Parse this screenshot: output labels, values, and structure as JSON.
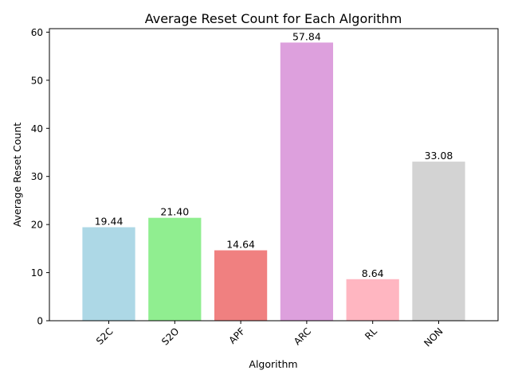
{
  "chart_data": {
    "type": "bar",
    "title": "Average Reset Count for Each Algorithm",
    "xlabel": "Algorithm",
    "ylabel": "Average Reset Count",
    "categories": [
      "S2C",
      "S2O",
      "APF",
      "ARC",
      "RL",
      "NON"
    ],
    "values": [
      19.44,
      21.4,
      14.64,
      57.84,
      8.64,
      33.08
    ],
    "value_labels": [
      "19.44",
      "21.40",
      "14.64",
      "57.84",
      "8.64",
      "33.08"
    ],
    "colors": [
      "#add8e6",
      "#90ee90",
      "#f08080",
      "#dda0dd",
      "#ffb6c1",
      "#d3d3d3"
    ],
    "ylim": [
      0,
      60.73
    ],
    "yticks": [
      0,
      10,
      20,
      30,
      40,
      50,
      60
    ],
    "grid": false,
    "x_tick_rotation_deg": 45
  }
}
